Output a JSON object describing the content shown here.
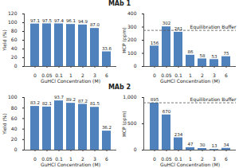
{
  "chart_data": [
    {
      "type": "bar",
      "title": "MAb 1",
      "x_label": "GuHCl Concentration (M)",
      "y_label": "Yield (%)",
      "categories": [
        "0",
        "0.05",
        "0.1",
        "1",
        "2",
        "3",
        "6"
      ],
      "values": [
        97.1,
        97.5,
        97.4,
        96.1,
        94.9,
        87.0,
        33.6
      ],
      "value_labels": [
        "97.1",
        "97.5",
        "97.4",
        "96.1",
        "94.9",
        "87.0",
        "33.6"
      ],
      "color": "#4f81bd",
      "ylim": [
        0,
        120
      ],
      "yticks": [
        0,
        20,
        40,
        60,
        80,
        100,
        120
      ],
      "data_labels": true,
      "grid": false
    },
    {
      "type": "bar",
      "x_label": "GuHCl Concentration (M)",
      "y_label": "HCP (ppm)",
      "categories": [
        "0",
        "0.05",
        "0.1",
        "1",
        "2",
        "3",
        "6"
      ],
      "values": [
        156,
        302,
        261,
        86,
        58,
        53,
        75
      ],
      "color": "#4f81bd",
      "ylim": [
        0,
        400
      ],
      "yticks": [
        0,
        100,
        200,
        300,
        400
      ],
      "reference_line": {
        "value": 275,
        "label": "Equilibration Buffer"
      },
      "data_labels": true,
      "grid": false
    },
    {
      "type": "bar",
      "title": "MAb 2",
      "x_label": "GuHCl Concentration (M)",
      "y_label": "Yield (%)",
      "categories": [
        "0",
        "0.05",
        "0.1",
        "1",
        "2",
        "3",
        "6"
      ],
      "values": [
        83.2,
        82.1,
        93.7,
        89.2,
        87.2,
        81.5,
        36.2
      ],
      "color": "#4f81bd",
      "ylim": [
        0,
        100
      ],
      "yticks": [
        0,
        20,
        40,
        60,
        80,
        100
      ],
      "data_labels": true,
      "grid": false
    },
    {
      "type": "bar",
      "x_label": "GuHCl Concentration (M)",
      "y_label": "HCP (ppm)",
      "categories": [
        "0",
        "0.05",
        "0.1",
        "1",
        "2",
        "3",
        "6"
      ],
      "values": [
        895,
        670,
        234,
        47,
        30,
        13,
        34
      ],
      "color": "#4f81bd",
      "ylim": [
        0,
        1000
      ],
      "yticks": [
        0,
        500,
        {
          "value": 1000,
          "label": "1,000"
        }
      ],
      "reference_line": {
        "value": 900,
        "label": "Equilibration Buffer"
      },
      "data_labels": true,
      "grid": false
    }
  ]
}
